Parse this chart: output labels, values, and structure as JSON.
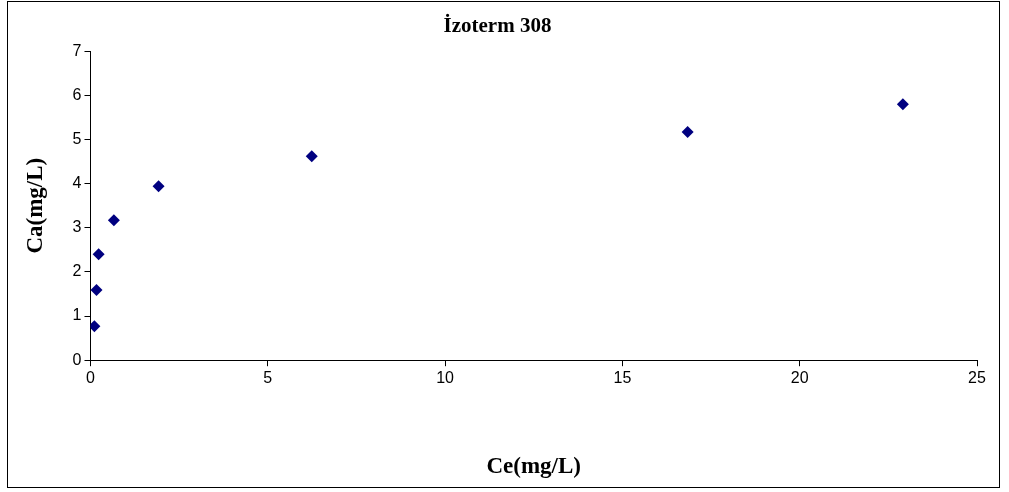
{
  "chart_data": {
    "type": "scatter",
    "title": "İzoterm 308",
    "xlabel": "Ce(mg/L)",
    "ylabel": "Ca(mg/L)",
    "x": [
      0.11,
      0.17,
      0.23,
      0.66,
      1.92,
      6.24,
      16.84,
      22.91
    ],
    "series": [
      {
        "color": "#000080",
        "values": [
          0.77,
          1.59,
          2.4,
          3.17,
          3.94,
          4.62,
          5.17,
          5.8
        ]
      }
    ],
    "xlim": [
      0,
      25
    ],
    "xticks": [
      0,
      5,
      10,
      15,
      20,
      25
    ],
    "ylim": [
      0,
      7
    ],
    "yticks": [
      0,
      1,
      2,
      3,
      4,
      5,
      6,
      7
    ],
    "marker": "diamond",
    "legend": false
  }
}
